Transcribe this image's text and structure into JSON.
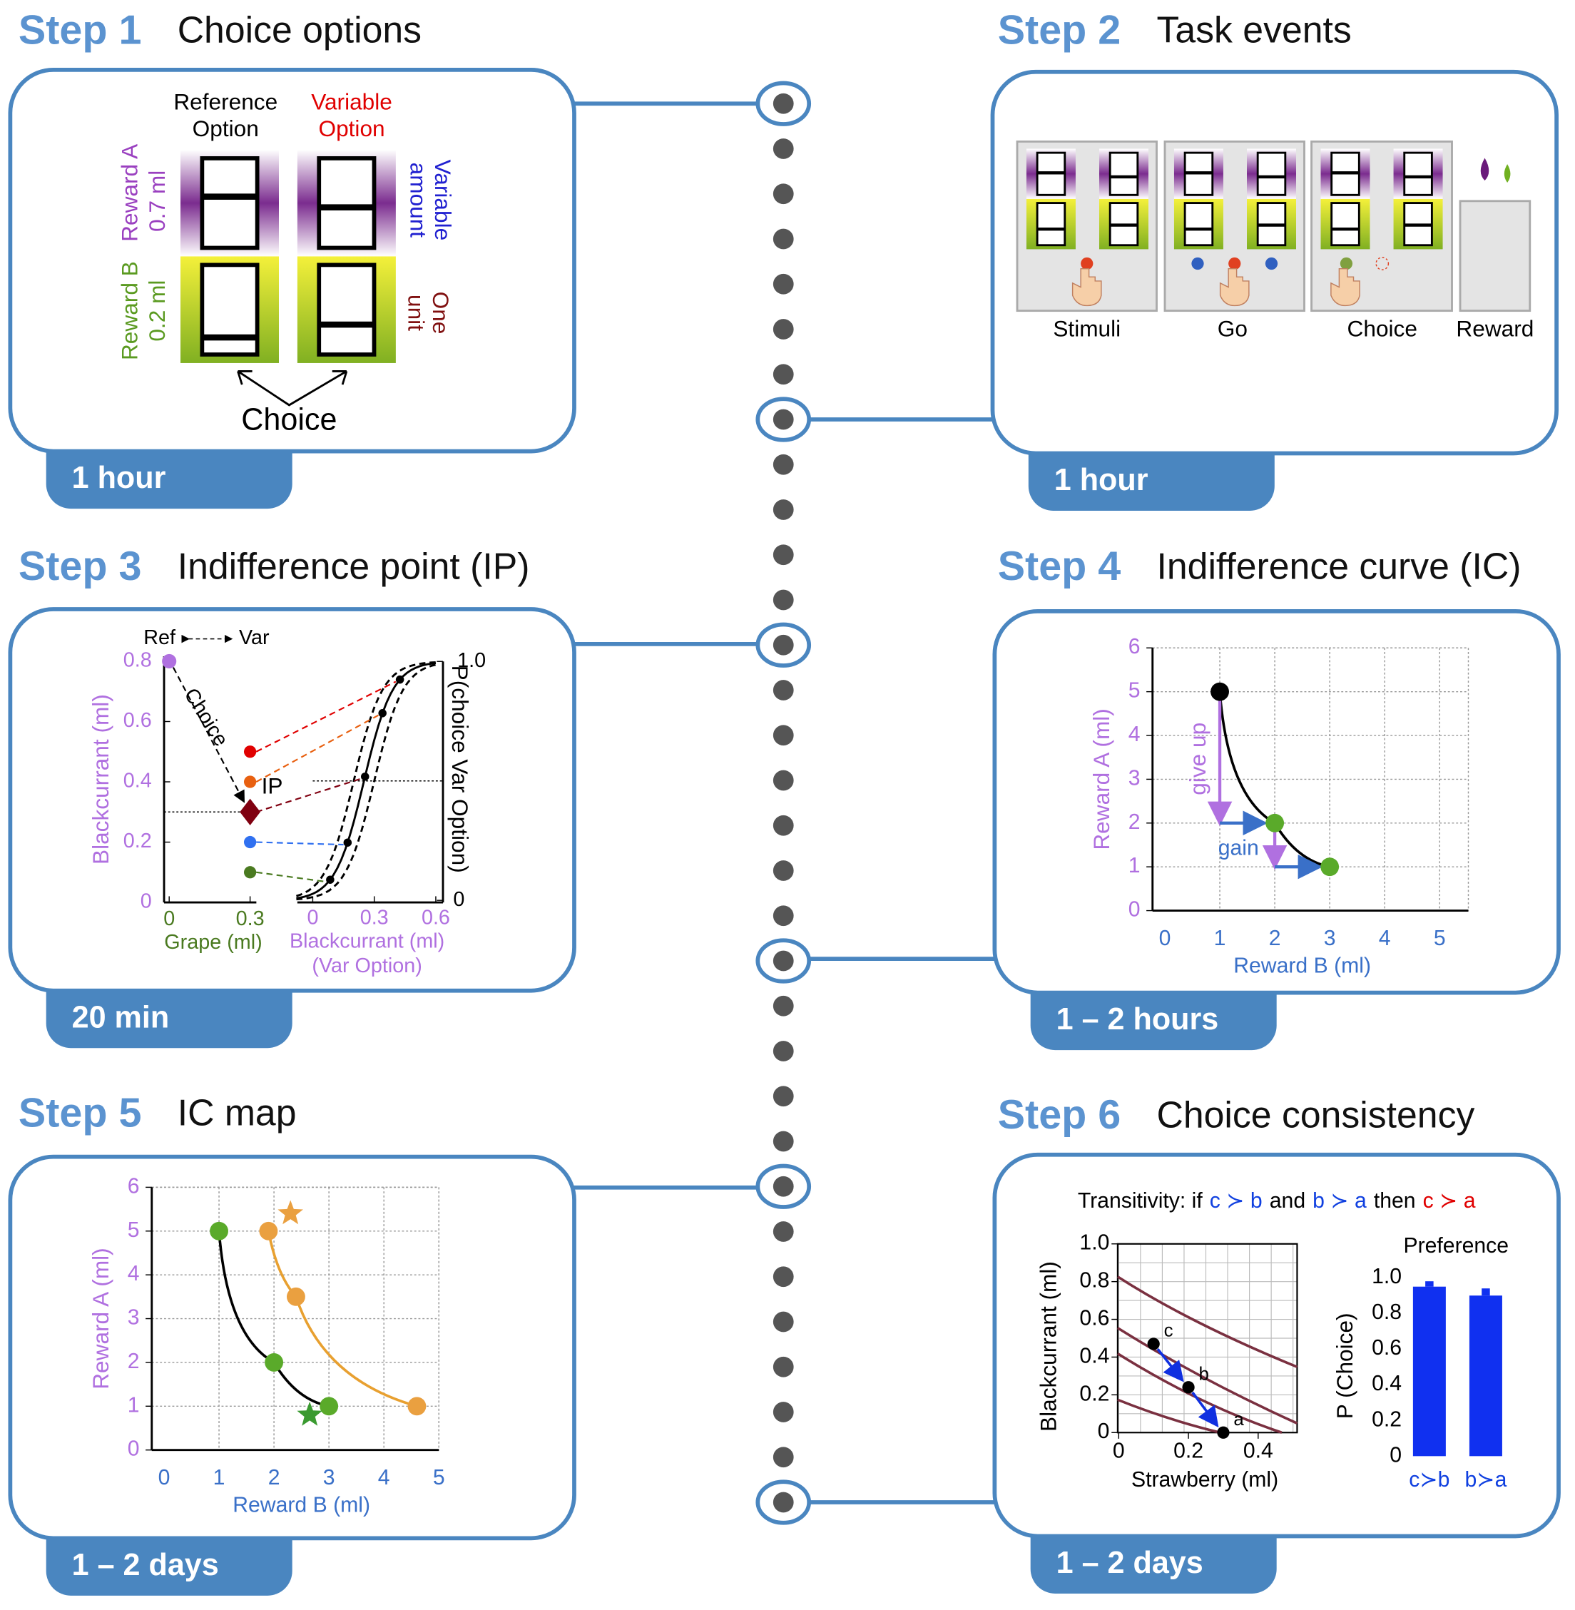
{
  "steps": [
    {
      "label": "Step 1",
      "title": "Choice options",
      "duration": "1 hour"
    },
    {
      "label": "Step 2",
      "title": "Task events",
      "duration": "1 hour"
    },
    {
      "label": "Step 3",
      "title": "Indifference point (IP)",
      "duration": "20 min"
    },
    {
      "label": "Step 4",
      "title": "Indifference curve (IC)",
      "duration": "1 – 2 hours"
    },
    {
      "label": "Step 5",
      "title": "IC map",
      "duration": "1 – 2 days"
    },
    {
      "label": "Step 6",
      "title": "Choice consistency",
      "duration": "1 – 2 days"
    }
  ],
  "options": {
    "reference": [
      "Reference",
      "Option"
    ],
    "variable": [
      "Variable",
      "Option"
    ],
    "reward_a": "Reward A",
    "reward_a_amount": "0.7 ml",
    "reward_b": "Reward B",
    "reward_b_amount": "0.2 ml",
    "variable_amount": [
      "Variable",
      "amount"
    ],
    "one_unit": [
      "One",
      "unit"
    ],
    "choice": "Choice"
  },
  "events": [
    "Stimuli",
    "Go",
    "Choice",
    "Reward"
  ],
  "ip": {
    "ref": "Ref",
    "var": "Var",
    "choice": "Choice",
    "ip": "IP",
    "y_label": "Blackcurrant (ml)",
    "yticks": [
      0,
      0.2,
      0.4,
      0.6,
      0.8
    ],
    "x_label": "Grape (ml)",
    "xticks": [
      0,
      0.3
    ],
    "ref_point": {
      "x": 0,
      "y": 0.8
    },
    "grape": 0.3,
    "points": [
      0.5,
      0.4,
      0.3,
      0.2,
      0.1
    ],
    "p_label": "P(choice Var Option)",
    "p_ticks": [
      0,
      {
        "value": 1,
        "label": "1.0"
      }
    ],
    "var_x_label": [
      "Blackcurrant (ml)",
      "(Var Option)"
    ],
    "var_xticks": [
      0,
      0.3,
      0.6
    ]
  },
  "ic": {
    "y_label": "Reward A (ml)",
    "x_label": "Reward B (ml)",
    "xticks": [
      0,
      1,
      2,
      3,
      4,
      5
    ],
    "yticks": [
      0,
      1,
      2,
      3,
      4,
      5,
      6
    ],
    "give_up": "give up",
    "gain": "gain",
    "points": {
      "x": [
        1,
        2,
        3
      ],
      "y": [
        5,
        2,
        1
      ]
    }
  },
  "ic_map": {
    "y_label": "Reward A (ml)",
    "x_label": "Reward B (ml)",
    "xticks": [
      0,
      1,
      2,
      3,
      4,
      5
    ],
    "yticks": [
      0,
      1,
      2,
      3,
      4,
      5,
      6
    ],
    "curves": [
      {
        "x": [
          1,
          2,
          3
        ],
        "y": [
          5,
          2,
          1
        ]
      },
      {
        "x": [
          1.9,
          2.4,
          4.6
        ],
        "y": [
          5,
          3.5,
          1
        ]
      }
    ],
    "stars": {
      "x": [
        2.3,
        2.65
      ],
      "y": [
        5.4,
        0.8
      ]
    }
  },
  "consistency": {
    "rule": [
      "Transitivity: if",
      "c ≻ b",
      "and",
      "b ≻ a",
      "then",
      "c ≻ a"
    ],
    "y_label": "Blackcurrant (ml)",
    "x_label": "Strawberry (ml)",
    "yticks": [
      0,
      0.2,
      0.4,
      0.6,
      0.8,
      {
        "value": 1,
        "label": "1.0"
      }
    ],
    "xticks": [
      0,
      0.2,
      0.4
    ],
    "points": {
      "labels": [
        "c",
        "b",
        "a"
      ],
      "x": [
        0.1,
        0.2,
        0.3
      ],
      "y": [
        0.47,
        0.24,
        0
      ]
    },
    "preference": "Preference",
    "p_label": "P (Choice)",
    "pticks": [
      0,
      0.2,
      0.4,
      0.6,
      0.8,
      {
        "value": 1,
        "label": "1.0"
      }
    ],
    "categories": [
      "c≻b",
      "b≻a"
    ],
    "values": [
      0.95,
      0.9
    ],
    "errors": [
      0.03,
      0.04
    ]
  }
}
